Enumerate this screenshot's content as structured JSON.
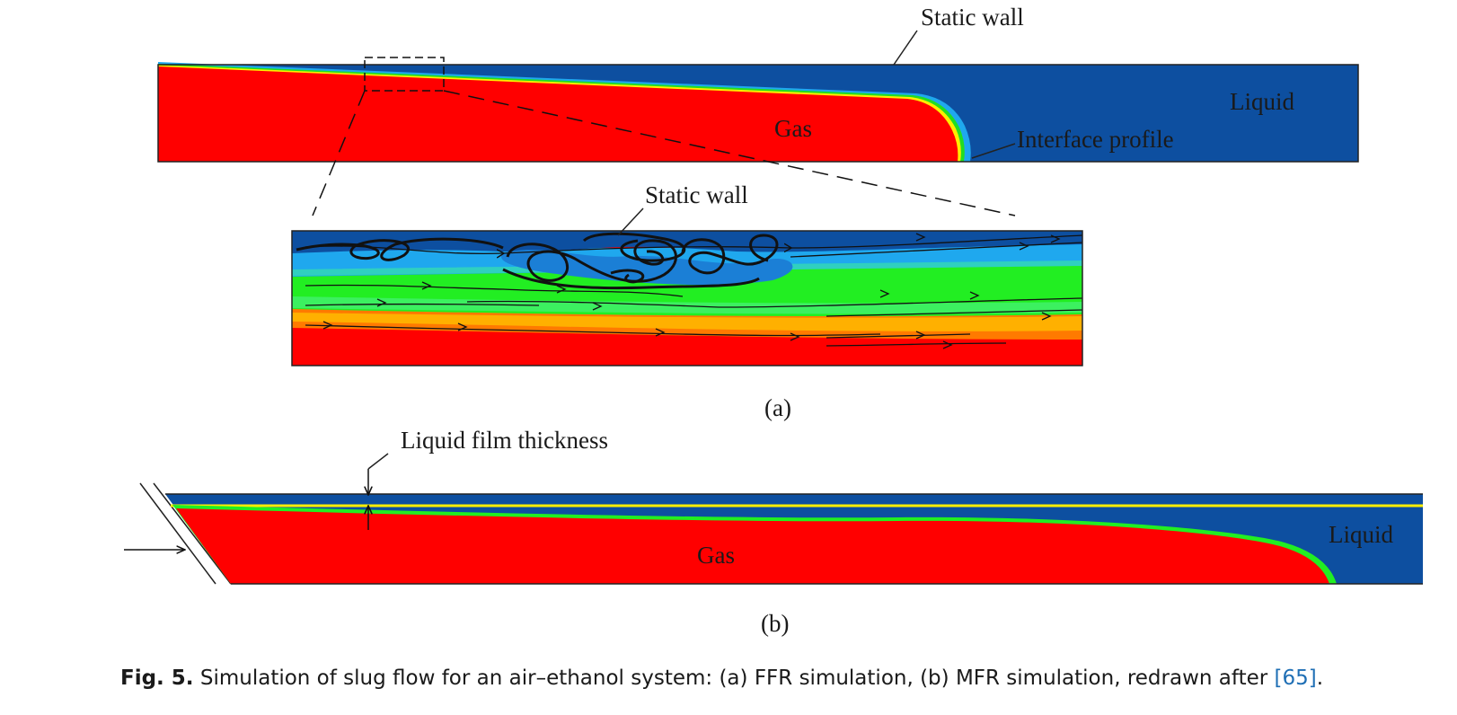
{
  "panel_a": {
    "label": "(a)",
    "static_wall_label": "Static wall",
    "liquid_label": "Liquid",
    "gas_label": "Gas",
    "interface_label": "Interface profile",
    "zoom_static_wall_label": "Static wall"
  },
  "panel_b": {
    "label": "(b)",
    "film_thickness_label": "Liquid film thickness",
    "gas_label": "Gas",
    "liquid_label": "Liquid"
  },
  "caption": {
    "fig_label": "Fig. 5.",
    "text": " Simulation of slug flow for an air–ethanol system: (a) FFR simulation, (b) MFR simulation, redrawn after ",
    "ref": "[65]",
    "end": "."
  },
  "colors": {
    "liquid": "#0d4fa0",
    "gas": "#ff0000",
    "interface_green": "#22dd22",
    "interface_yellow": "#ffee00",
    "light_blue": "#1fa8ee",
    "orange": "#ff9a00"
  }
}
